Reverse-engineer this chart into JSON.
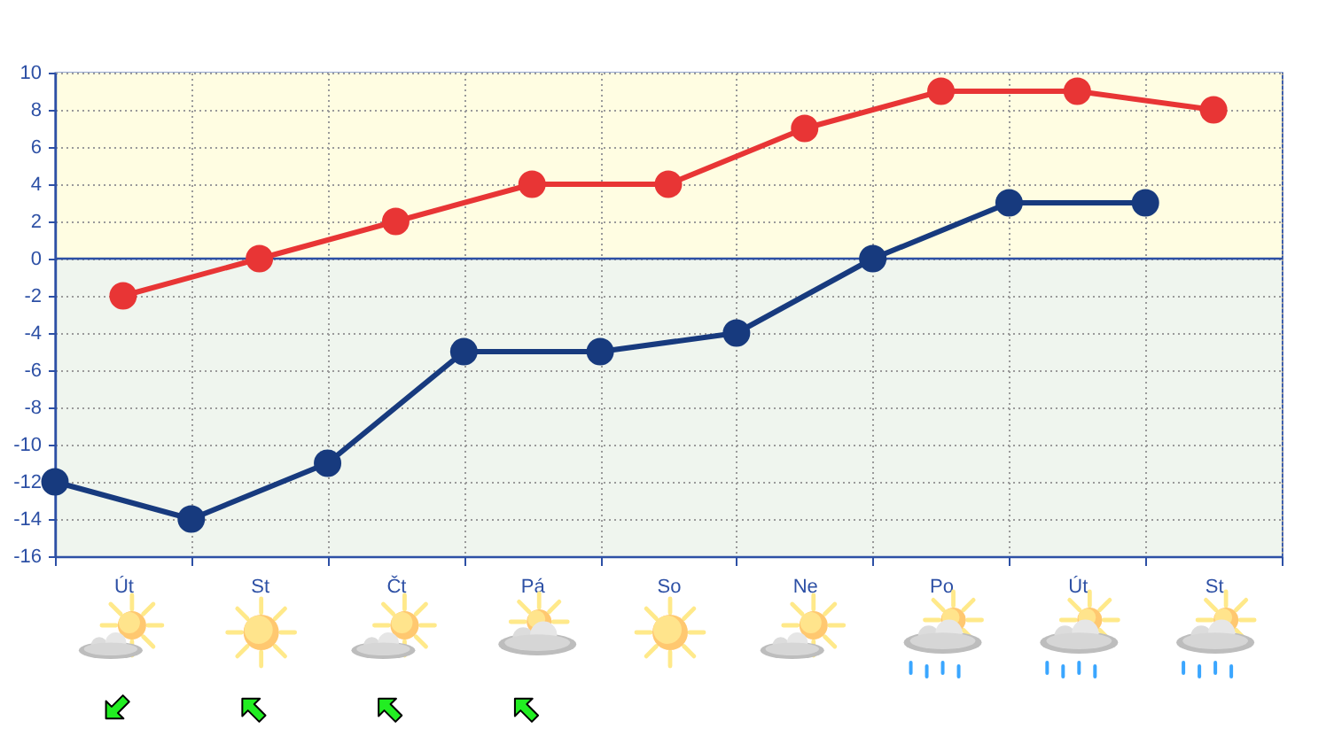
{
  "chart_data": {
    "type": "line",
    "categories": [
      null,
      "Út",
      null,
      "St",
      null,
      "Čt",
      null,
      "Pá",
      null,
      "So",
      null,
      "Ne",
      null,
      "Po",
      null,
      "Út",
      null,
      "St",
      null
    ],
    "ylim": [
      -16,
      10
    ],
    "yticks": [
      -16,
      -14,
      -12,
      -10,
      -8,
      -6,
      -4,
      -2,
      0,
      2,
      4,
      6,
      8,
      10
    ],
    "grid": true,
    "marker": "circle",
    "line_style": "solid",
    "series": [
      {
        "color": "#e83535",
        "values": [
          null,
          -2,
          null,
          0,
          null,
          2,
          null,
          4,
          null,
          4,
          null,
          7,
          null,
          9,
          null,
          9,
          null,
          8,
          null
        ]
      },
      {
        "color": "#173a7e",
        "values": [
          -12,
          null,
          -14,
          null,
          -11,
          null,
          -5,
          null,
          -5,
          null,
          -4,
          null,
          0,
          null,
          3,
          null,
          3,
          null,
          null
        ]
      }
    ],
    "bands": [
      {
        "axis": "y",
        "from": 0,
        "to": 10,
        "color": "#fffde2"
      },
      {
        "axis": "y",
        "from": -16,
        "to": 0,
        "color": "#eff5ee"
      }
    ],
    "ref_lines": [
      {
        "axis": "y",
        "value": 0,
        "color": "#2d50a5"
      }
    ]
  }
}
